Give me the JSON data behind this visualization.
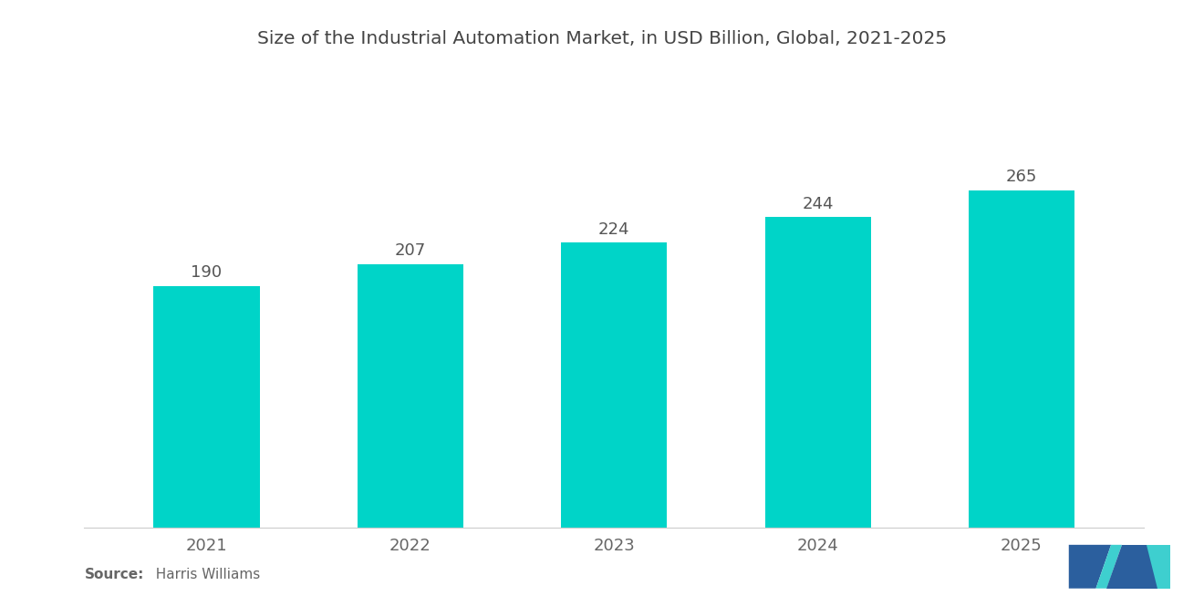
{
  "title": "Size of the Industrial Automation Market, in USD Billion, Global, 2021-2025",
  "categories": [
    "2021",
    "2022",
    "2023",
    "2024",
    "2025"
  ],
  "values": [
    190,
    207,
    224,
    244,
    265
  ],
  "bar_color": "#00D4C8",
  "background_color": "#FFFFFF",
  "title_fontsize": 14.5,
  "bar_label_fontsize": 13,
  "axis_label_fontsize": 13,
  "source_bold": "Source:",
  "source_normal": "  Harris Williams",
  "ylim": [
    0,
    310
  ],
  "bar_width": 0.52,
  "logo_dark_blue": "#2B5F9E",
  "logo_teal": "#3ECFCF"
}
